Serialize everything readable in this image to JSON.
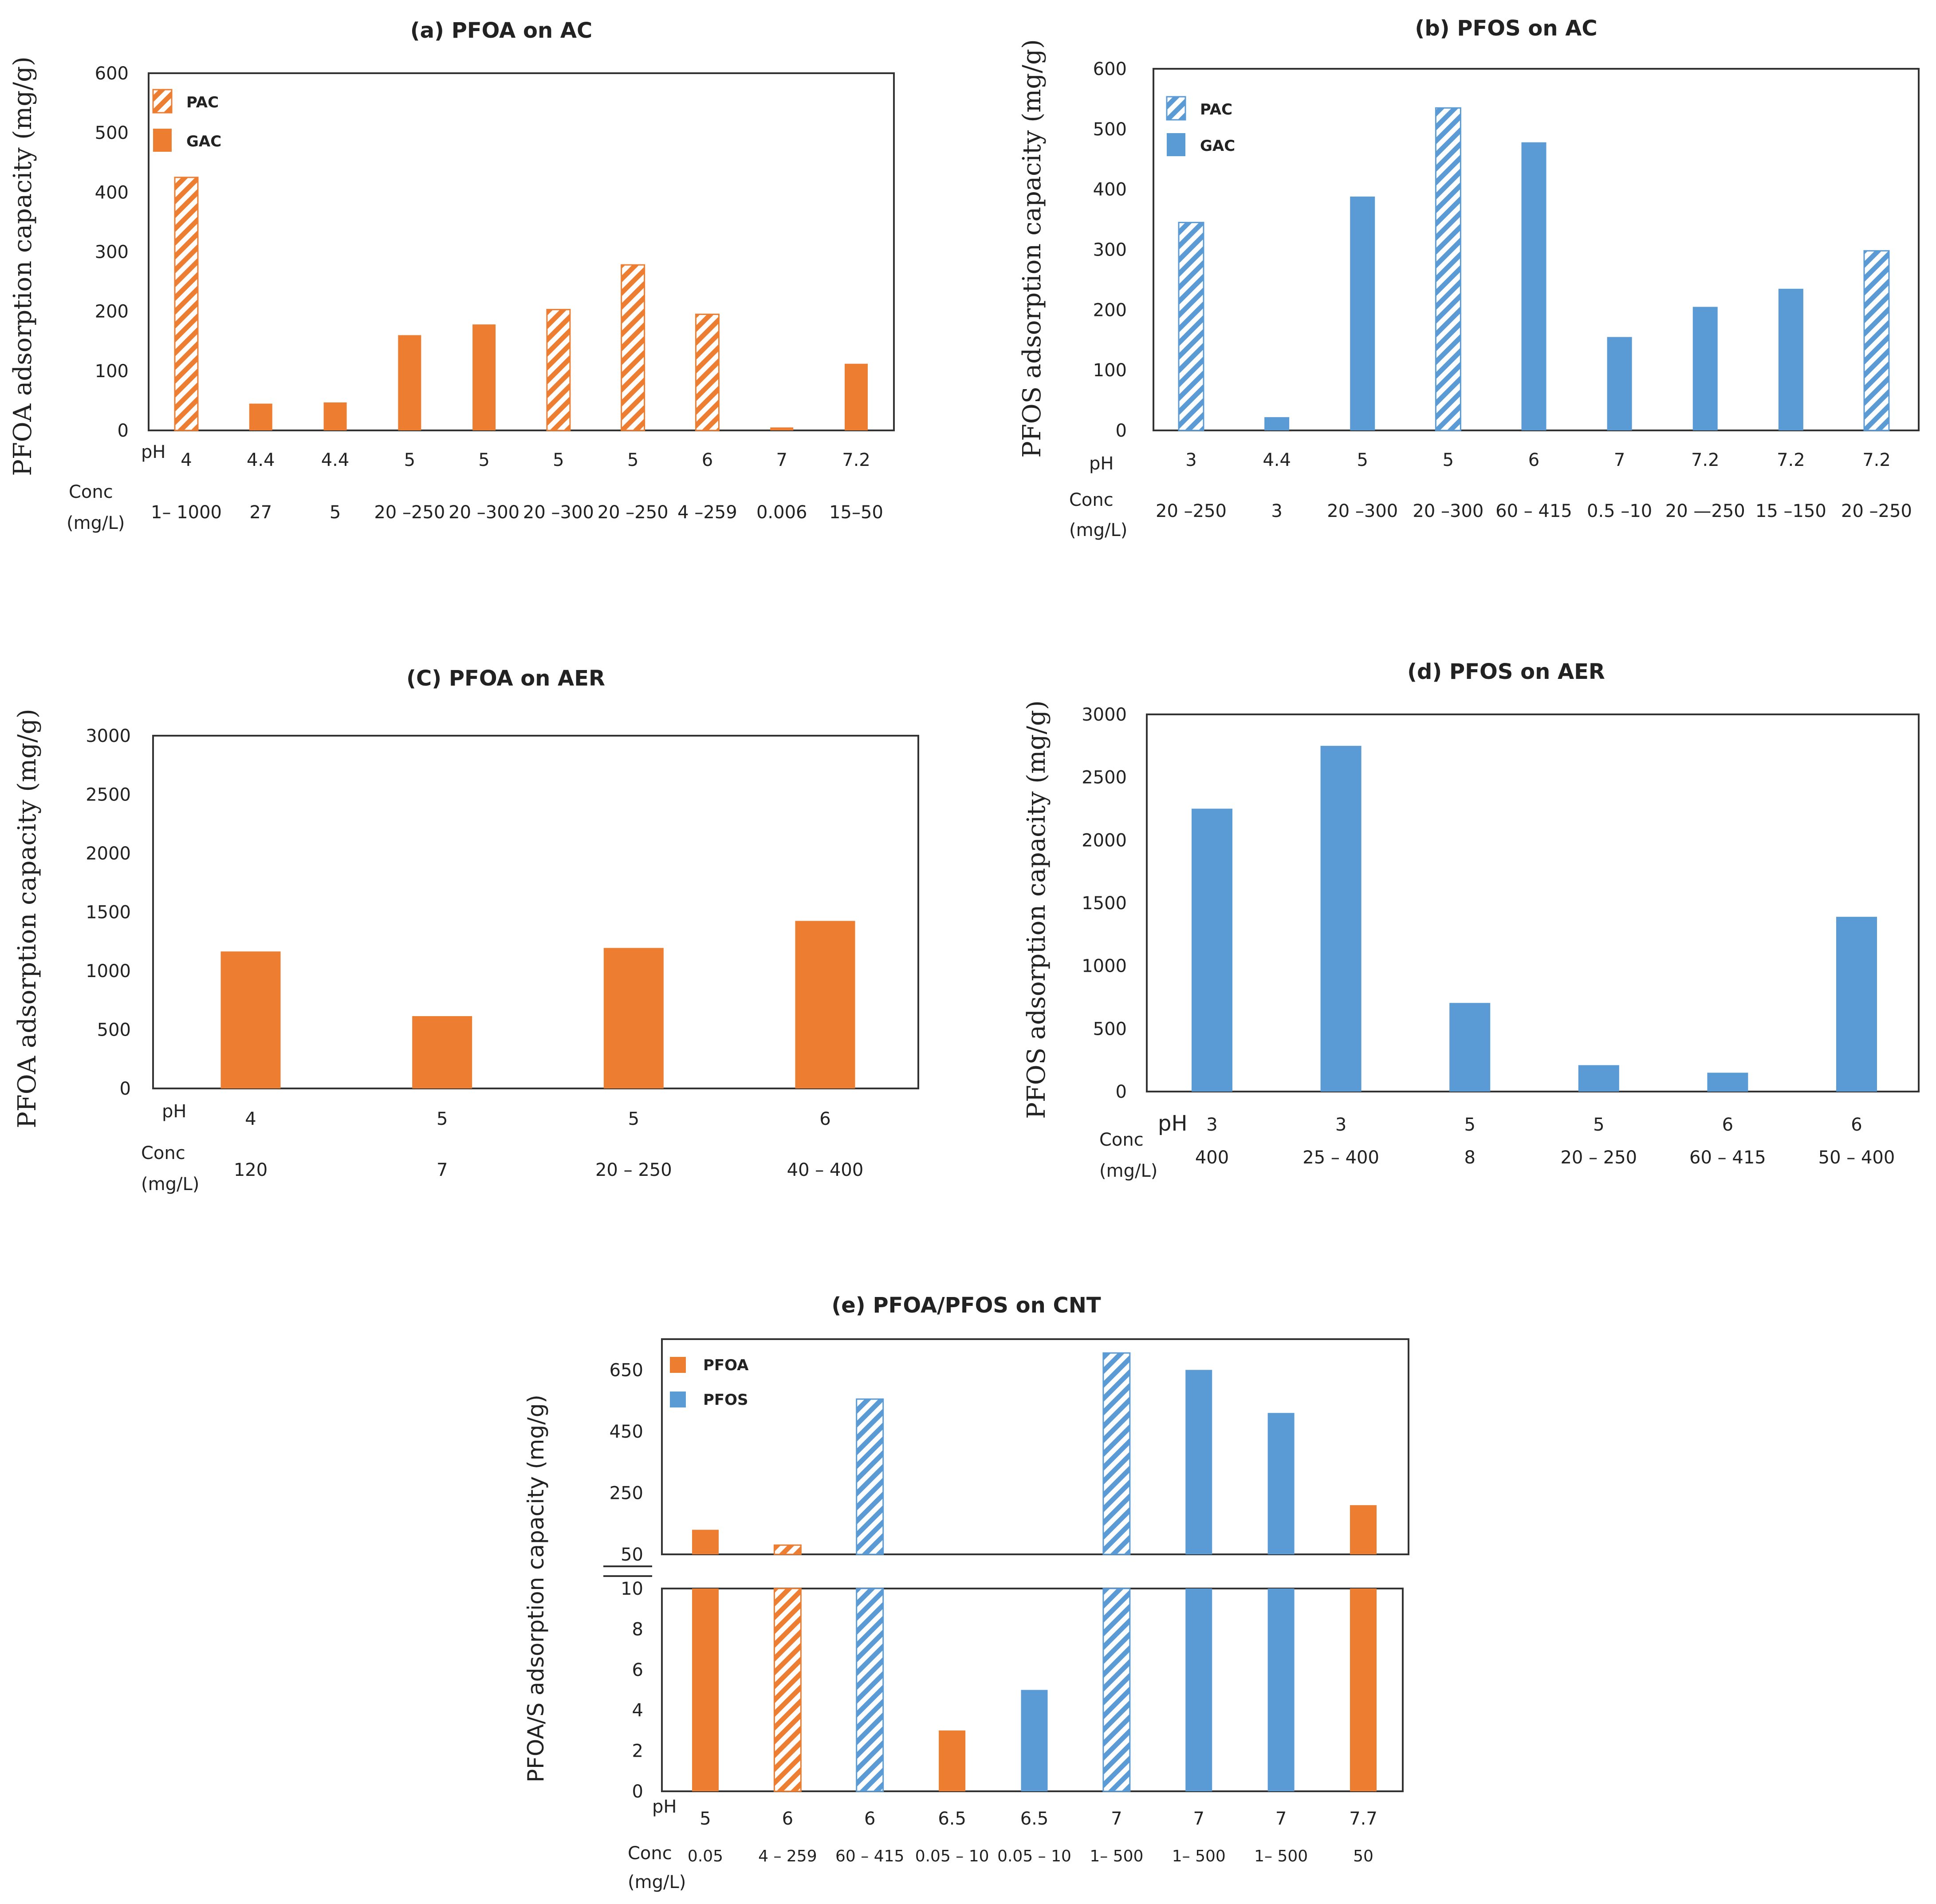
{
  "colors": {
    "orange": "#ED7D31",
    "blue": "#5B9BD5"
  },
  "chart_data": [
    {
      "id": "a",
      "type": "bar",
      "title": "(a) PFOA on AC",
      "ylabel": "PFOA adsorption capacity (mg/g)",
      "ylim": [
        0,
        600
      ],
      "yticks": [
        0,
        100,
        200,
        300,
        400,
        500,
        600
      ],
      "row_labels": [
        "pH",
        "Conc",
        "(mg/L)"
      ],
      "ph": [
        "4",
        "4.4",
        "4.4",
        "5",
        "5",
        "5",
        "5",
        "6",
        "7",
        "7.2"
      ],
      "conc": [
        "1– 1000",
        "27",
        "5",
        "20 –250",
        "20 –300",
        "20 –300",
        "20 –250",
        "4 –259",
        "0.006",
        "15–50"
      ],
      "values": [
        425,
        45,
        47,
        160,
        178,
        203,
        278,
        195,
        5,
        112
      ],
      "kind": [
        "PAC",
        "GAC",
        "GAC",
        "GAC",
        "GAC",
        "PAC",
        "PAC",
        "PAC",
        "GAC",
        "GAC"
      ],
      "color": "orange",
      "legend": [
        {
          "label": "PAC",
          "kind": "PAC"
        },
        {
          "label": "GAC",
          "kind": "GAC"
        }
      ]
    },
    {
      "id": "b",
      "type": "bar",
      "title": "(b) PFOS on AC",
      "ylabel": "PFOS adsorption capacity (mg/g)",
      "ylim": [
        0,
        600
      ],
      "yticks": [
        0,
        100,
        200,
        300,
        400,
        500,
        600
      ],
      "row_labels": [
        "pH",
        "Conc",
        "(mg/L)"
      ],
      "ph": [
        "3",
        "4.4",
        "5",
        "5",
        "6",
        "7",
        "7.2",
        "7.2",
        "7.2"
      ],
      "conc": [
        "20 –250",
        "3",
        "20 –300",
        "20 –300",
        "60 – 415",
        "0.5 –10",
        "20 —250",
        "15 –150",
        "20 –250"
      ],
      "values": [
        345,
        22,
        388,
        535,
        478,
        155,
        205,
        235,
        298
      ],
      "kind": [
        "PAC",
        "GAC",
        "GAC",
        "PAC",
        "GAC",
        "GAC",
        "GAC",
        "GAC",
        "PAC"
      ],
      "color": "blue",
      "legend": [
        {
          "label": "PAC",
          "kind": "PAC"
        },
        {
          "label": "GAC",
          "kind": "GAC"
        }
      ]
    },
    {
      "id": "c",
      "type": "bar",
      "title": "(C) PFOA on AER",
      "ylabel": "PFOA adsorption capacity (mg/g)",
      "ylim": [
        0,
        3000
      ],
      "yticks": [
        0,
        500,
        1000,
        1500,
        2000,
        2500,
        3000
      ],
      "row_labels": [
        "pH",
        "Conc",
        "(mg/L)"
      ],
      "ph": [
        "4",
        "5",
        "5",
        "6"
      ],
      "conc": [
        "120",
        "7",
        "20 – 250",
        "40 – 400"
      ],
      "values": [
        1165,
        615,
        1195,
        1425
      ],
      "kind": [
        "GAC",
        "GAC",
        "GAC",
        "GAC"
      ],
      "color": "orange",
      "legend": []
    },
    {
      "id": "d",
      "type": "bar",
      "title": "(d) PFOS on AER",
      "ylabel": "PFOS adsorption capacity (mg/g)",
      "ylim": [
        0,
        3000
      ],
      "yticks": [
        0,
        500,
        1000,
        1500,
        2000,
        2500,
        3000
      ],
      "row_labels": [
        "pH",
        "Conc",
        "(mg/L)"
      ],
      "ph": [
        "3",
        "3",
        "5",
        "5",
        "6",
        "6"
      ],
      "conc": [
        "400",
        "25 – 400",
        "8",
        "20 – 250",
        "60 – 415",
        "50 – 400"
      ],
      "values": [
        2250,
        2750,
        705,
        210,
        150,
        1390
      ],
      "kind": [
        "GAC",
        "GAC",
        "GAC",
        "GAC",
        "GAC",
        "GAC"
      ],
      "color": "blue",
      "legend": []
    },
    {
      "id": "e",
      "type": "bar",
      "title": "(e) PFOA/PFOS on CNT",
      "ylabel": "PFOA/S adsorption capacity (mg/g)",
      "ylim_top": [
        50,
        750
      ],
      "yticks_top": [
        50,
        250,
        450,
        650
      ],
      "ylim_bottom": [
        0,
        10
      ],
      "yticks_bottom": [
        0,
        2,
        4,
        6,
        8,
        10
      ],
      "row_labels": [
        "pH",
        "Conc",
        "(mg/L)"
      ],
      "ph": [
        "5",
        "6",
        "6",
        "6.5",
        "6.5",
        "7",
        "7",
        "7",
        "7.7"
      ],
      "conc": [
        "0.05",
        "4 – 259",
        "60 – 415",
        "0.05 – 10",
        "0.05 – 10",
        "1– 500",
        "1– 500",
        "1– 500",
        "50"
      ],
      "values": [
        130,
        80,
        555,
        3,
        5,
        705,
        650,
        510,
        210
      ],
      "analyte": [
        "PFOA",
        "PFOA",
        "PFOS",
        "PFOA",
        "PFOS",
        "PFOS",
        "PFOS",
        "PFOS",
        "PFOA"
      ],
      "hatched": [
        false,
        true,
        true,
        false,
        false,
        true,
        false,
        false,
        false
      ],
      "legend": [
        {
          "label": "PFOA",
          "color": "orange"
        },
        {
          "label": "PFOS",
          "color": "blue"
        }
      ]
    }
  ]
}
